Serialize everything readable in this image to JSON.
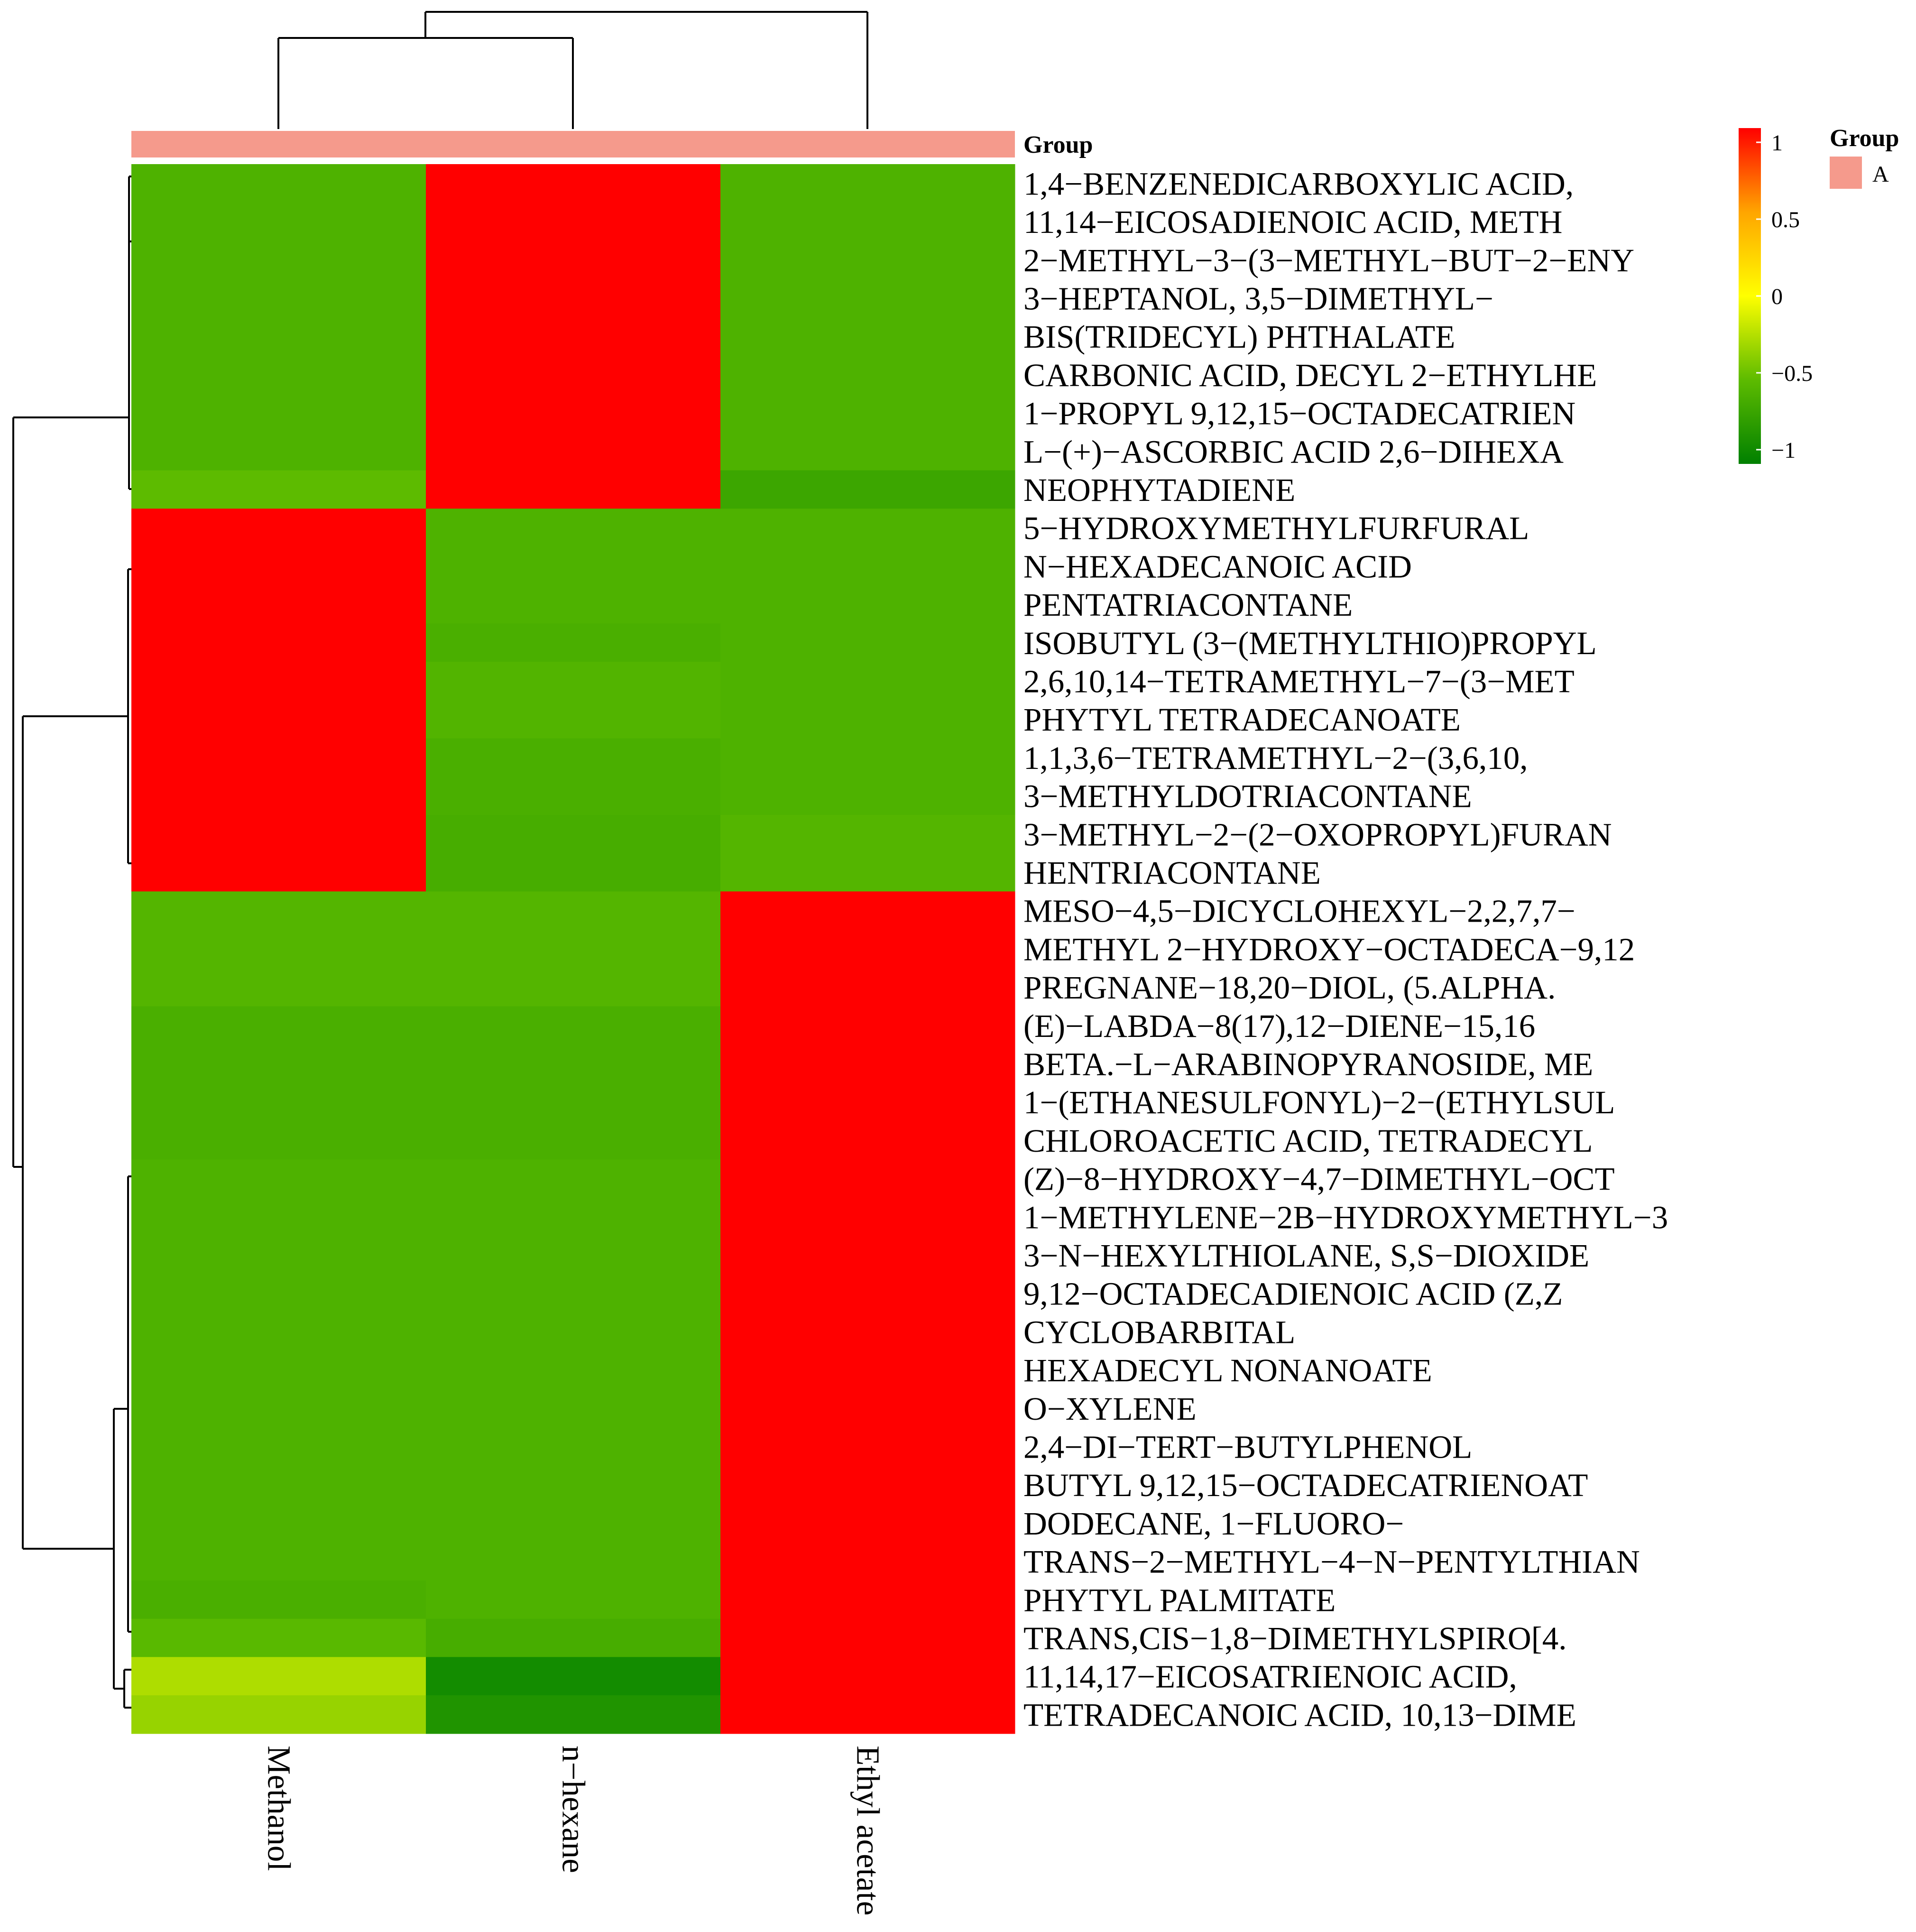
{
  "chart_data": {
    "type": "heatmap",
    "title": "",
    "columns": [
      "Methanol",
      "n−hexane",
      "Ethyl acetate"
    ],
    "rows": [
      "1,4−BENZENEDICARBOXYLIC ACID,",
      "11,14−EICOSADIENOIC ACID, METH",
      "2−METHYL−3−(3−METHYL−BUT−2−ENY",
      "3−HEPTANOL, 3,5−DIMETHYL−",
      "BIS(TRIDECYL) PHTHALATE",
      "CARBONIC ACID, DECYL 2−ETHYLHE",
      "1−PROPYL 9,12,15−OCTADECATRIEN",
      "L−(+)−ASCORBIC ACID 2,6−DIHEXA",
      "NEOPHYTADIENE",
      "5−HYDROXYMETHYLFURFURAL",
      "N−HEXADECANOIC ACID",
      "PENTATRIACONTANE",
      "ISOBUTYL (3−(METHYLTHIO)PROPYL",
      "2,6,10,14−TETRAMETHYL−7−(3−MET",
      "PHYTYL TETRADECANOATE",
      "1,1,3,6−TETRAMETHYL−2−(3,6,10,",
      "3−METHYLDOTRIACONTANE",
      "3−METHYL−2−(2−OXOPROPYL)FURAN",
      "HENTRIACONTANE",
      "MESO−4,5−DICYCLOHEXYL−2,2,7,7−",
      "METHYL 2−HYDROXY−OCTADECA−9,12",
      "PREGNANE−18,20−DIOL, (5.ALPHA.",
      "(E)−LABDA−8(17),12−DIENE−15,16",
      "BETA.−L−ARABINOPYRANOSIDE, ME",
      "1−(ETHANESULFONYL)−2−(ETHYLSUL",
      "CHLOROACETIC ACID, TETRADECYL",
      "(Z)−8−HYDROXY−4,7−DIMETHYL−OCT",
      "1−METHYLENE−2B−HYDROXYMETHYL−3",
      "3−N−HEXYLTHIOLANE, S,S−DIOXIDE",
      "9,12−OCTADECADIENOIC ACID (Z,Z",
      "CYCLOBARBITAL",
      "HEXADECYL NONANOATE",
      "O−XYLENE",
      "2,4−DI−TERT−BUTYLPHENOL",
      "BUTYL 9,12,15−OCTADECATRIENOAT",
      "DODECANE, 1−FLUORO−",
      "TRANS−2−METHYL−4−N−PENTYLTHIAN",
      "PHYTYL PALMITATE",
      "TRANS,CIS−1,8−DIMETHYLSPIRO[4.",
      "11,14,17−EICOSATRIENOIC ACID,",
      "TETRADECANOIC ACID, 10,13−DIME"
    ],
    "values": [
      [
        -0.58,
        1.15,
        -0.58
      ],
      [
        -0.58,
        1.15,
        -0.58
      ],
      [
        -0.58,
        1.15,
        -0.58
      ],
      [
        -0.58,
        1.15,
        -0.58
      ],
      [
        -0.58,
        1.15,
        -0.58
      ],
      [
        -0.58,
        1.15,
        -0.58
      ],
      [
        -0.58,
        1.15,
        -0.58
      ],
      [
        -0.58,
        1.15,
        -0.58
      ],
      [
        -0.5,
        1.15,
        -0.68
      ],
      [
        1.15,
        -0.58,
        -0.58
      ],
      [
        1.15,
        -0.58,
        -0.58
      ],
      [
        1.15,
        -0.58,
        -0.58
      ],
      [
        1.15,
        -0.6,
        -0.58
      ],
      [
        1.15,
        -0.56,
        -0.58
      ],
      [
        1.15,
        -0.56,
        -0.58
      ],
      [
        1.15,
        -0.6,
        -0.58
      ],
      [
        1.15,
        -0.6,
        -0.58
      ],
      [
        1.15,
        -0.62,
        -0.55
      ],
      [
        1.15,
        -0.62,
        -0.55
      ],
      [
        -0.55,
        -0.55,
        1.15
      ],
      [
        -0.55,
        -0.55,
        1.15
      ],
      [
        -0.55,
        -0.55,
        1.15
      ],
      [
        -0.6,
        -0.6,
        1.15
      ],
      [
        -0.6,
        -0.6,
        1.15
      ],
      [
        -0.6,
        -0.6,
        1.15
      ],
      [
        -0.6,
        -0.6,
        1.15
      ],
      [
        -0.58,
        -0.58,
        1.15
      ],
      [
        -0.58,
        -0.58,
        1.15
      ],
      [
        -0.58,
        -0.58,
        1.15
      ],
      [
        -0.58,
        -0.58,
        1.15
      ],
      [
        -0.58,
        -0.58,
        1.15
      ],
      [
        -0.58,
        -0.58,
        1.15
      ],
      [
        -0.58,
        -0.58,
        1.15
      ],
      [
        -0.58,
        -0.58,
        1.15
      ],
      [
        -0.58,
        -0.58,
        1.15
      ],
      [
        -0.58,
        -0.58,
        1.15
      ],
      [
        -0.58,
        -0.58,
        1.15
      ],
      [
        -0.6,
        -0.58,
        1.15
      ],
      [
        -0.52,
        -0.62,
        1.15
      ],
      [
        -0.25,
        -0.9,
        1.15
      ],
      [
        -0.32,
        -0.83,
        1.15
      ]
    ],
    "color_scale": {
      "min": -1,
      "max": 1,
      "colors": [
        "#008000",
        "#5dbb00",
        "#ffff00",
        "#ffa500",
        "#ff0000"
      ],
      "ticks": [
        "1",
        "0.5",
        "0",
        "−0.5",
        "−1"
      ],
      "tick_values": [
        1,
        0.5,
        0,
        -0.5,
        -1
      ]
    },
    "annotation": {
      "label": "Group",
      "legend_title": "Group",
      "legend_items": [
        "A"
      ],
      "color": "#f59a8c"
    },
    "col_dendrogram": "((Methanol,n−hexane),Ethyl acetate)",
    "row_dendrogram": "three clusters: rows 1–9, rows 10–19, rows 20–41",
    "grid": false,
    "legend_position": "top-right"
  }
}
